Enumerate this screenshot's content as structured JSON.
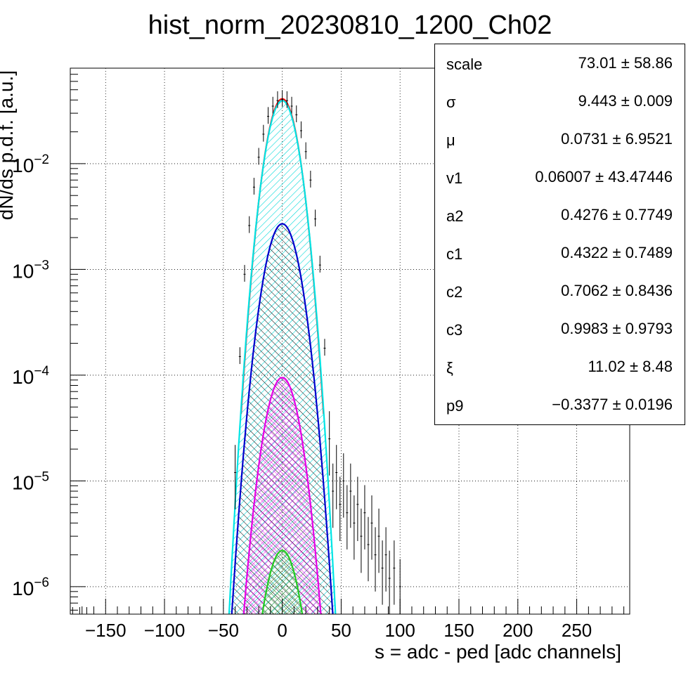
{
  "chart_data": {
    "type": "line",
    "title": "hist_norm_20230810_1200_Ch02",
    "xlabel": "s = adc - ped [adc channels]",
    "ylabel": "dN/ds p.d.f. [a.u.]",
    "xlim": [
      -180,
      295
    ],
    "ylim": [
      5.5e-07,
      0.08
    ],
    "yscale": "log",
    "grid": true,
    "x_ticks": [
      -150,
      -100,
      -50,
      0,
      50,
      100,
      150,
      200,
      250
    ],
    "x_tick_labels": [
      "−150",
      "−100",
      "−50",
      "0",
      "50",
      "100",
      "150",
      "200",
      "250"
    ],
    "y_ticks": [
      {
        "value": 1e-06,
        "base": "10",
        "exp": "−6"
      },
      {
        "value": 1e-05,
        "base": "10",
        "exp": "−5"
      },
      {
        "value": 0.0001,
        "base": "10",
        "exp": "−4"
      },
      {
        "value": 0.001,
        "base": "10",
        "exp": "−3"
      },
      {
        "value": 0.01,
        "base": "10",
        "exp": "−2"
      }
    ],
    "series": [
      {
        "color": "#ff0000",
        "peak": 0.041,
        "sigma": 9.45,
        "x_range": [
          -35,
          35
        ],
        "fill": "none"
      },
      {
        "color": "#00e5e5",
        "peak": 0.0395,
        "sigma": 9.55,
        "x_range": [
          -50,
          50
        ],
        "fill": "hatch-cyan"
      },
      {
        "color": "#0000cc",
        "peak": 0.0027,
        "sigma": 10.4,
        "x_range": [
          -50,
          50
        ],
        "fill": "hatch-black"
      },
      {
        "color": "#e600e6",
        "peak": 9.5e-05,
        "sigma": 10.2,
        "x_range": [
          -50,
          50
        ],
        "fill": "cross-magenta"
      },
      {
        "color": "#22cc22",
        "peak": 2.2e-06,
        "sigma": 10.2,
        "x_range": [
          -50,
          50
        ],
        "fill": "cross-green"
      }
    ],
    "data_points": [
      {
        "x": -40,
        "y": 1.2e-05
      },
      {
        "x": -36,
        "y": 0.00015
      },
      {
        "x": -32,
        "y": 0.0009
      },
      {
        "x": -28,
        "y": 0.0026
      },
      {
        "x": -24,
        "y": 0.006
      },
      {
        "x": -20,
        "y": 0.0115
      },
      {
        "x": -16,
        "y": 0.019
      },
      {
        "x": -12,
        "y": 0.028
      },
      {
        "x": -8,
        "y": 0.035
      },
      {
        "x": -4,
        "y": 0.0395
      },
      {
        "x": 0,
        "y": 0.0405
      },
      {
        "x": 4,
        "y": 0.0395
      },
      {
        "x": 8,
        "y": 0.035
      },
      {
        "x": 12,
        "y": 0.029
      },
      {
        "x": 16,
        "y": 0.0205
      },
      {
        "x": 20,
        "y": 0.013
      },
      {
        "x": 24,
        "y": 0.007
      },
      {
        "x": 28,
        "y": 0.003
      },
      {
        "x": 32,
        "y": 0.0011
      },
      {
        "x": 36,
        "y": 0.00018
      },
      {
        "x": 40,
        "y": 2.5e-05
      },
      {
        "x": 43,
        "y": 8e-06
      },
      {
        "x": 46,
        "y": 1.2e-05
      },
      {
        "x": 49,
        "y": 6e-06
      },
      {
        "x": 52,
        "y": 1e-05
      },
      {
        "x": 55,
        "y": 5e-06
      },
      {
        "x": 58,
        "y": 8e-06
      },
      {
        "x": 61,
        "y": 4e-06
      },
      {
        "x": 64,
        "y": 6e-06
      },
      {
        "x": 67,
        "y": 3e-06
      },
      {
        "x": 70,
        "y": 5e-06
      },
      {
        "x": 73,
        "y": 2.5e-06
      },
      {
        "x": 76,
        "y": 4e-06
      },
      {
        "x": 79,
        "y": 2e-06
      },
      {
        "x": 82,
        "y": 3e-06
      },
      {
        "x": 85,
        "y": 1.5e-06
      },
      {
        "x": 88,
        "y": 2e-06
      },
      {
        "x": 91,
        "y": 1.2e-06
      },
      {
        "x": 95,
        "y": 1.5e-06
      },
      {
        "x": 100,
        "y": 1e-06
      }
    ]
  },
  "stats": [
    {
      "name": "scale",
      "value": "73.01 ± 58.86"
    },
    {
      "name": "σ",
      "value": "9.443 ± 0.009"
    },
    {
      "name": "μ",
      "value": "0.0731 ± 6.9521"
    },
    {
      "name": "v1",
      "value": "0.06007 ± 43.47446"
    },
    {
      "name": "a2",
      "value": "0.4276 ± 0.7749"
    },
    {
      "name": "c1",
      "value": "0.4322 ± 0.7489"
    },
    {
      "name": "c2",
      "value": "0.7062 ± 0.8436"
    },
    {
      "name": "c3",
      "value": "0.9983 ± 0.9793"
    },
    {
      "name": "ξ",
      "value": "11.02 ± 8.48"
    },
    {
      "name": "p9",
      "value": "−0.3377 ± 0.0196"
    }
  ]
}
